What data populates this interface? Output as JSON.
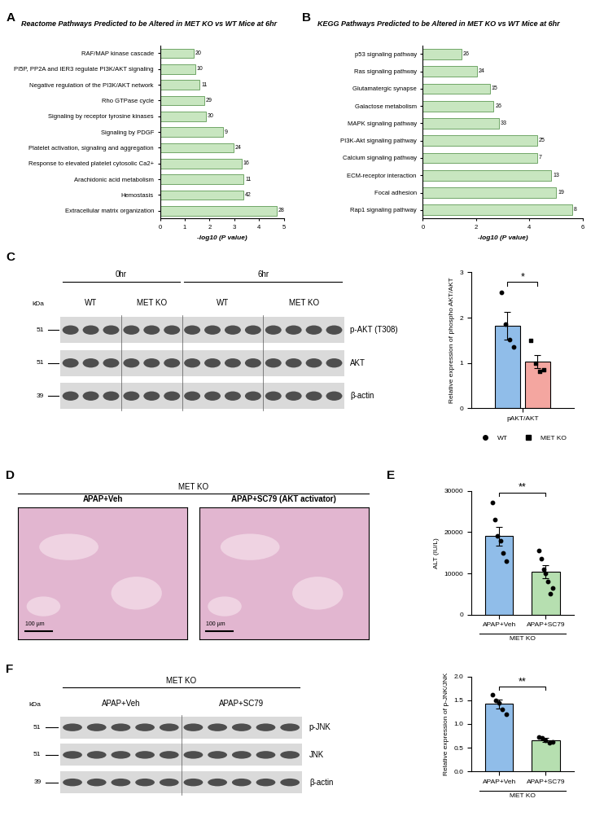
{
  "panel_labels": [
    "A",
    "B",
    "C",
    "D",
    "E",
    "F"
  ],
  "chart_data": [
    {
      "type": "bar",
      "orientation": "horizontal",
      "title": "Reactome Pathways Predicted to be Altered in MET KO vs WT Mice at 6hr",
      "x_label": "-log10 (P value)",
      "categories": [
        "RAF/MAP kinase cascade",
        "PI5P, PP2A and IER3 regulate PI3K/AKT signaling",
        "Negative regulation of the PI3K/AKT network",
        "Rho GTPase cycle",
        "Signaling by receptor tyrosine kinases",
        "Signaling by PDGF",
        "Platelet activation, signaling and aggregation",
        "Response to elevated platelet cytosolic Ca2+",
        "Arachidonic acid metabolism",
        "Hemostasis",
        "Extracellular matrix organization"
      ],
      "values": [
        1.35,
        1.42,
        1.6,
        1.78,
        1.85,
        2.55,
        2.97,
        3.3,
        3.38,
        3.38,
        4.72
      ],
      "counts": [
        20,
        10,
        11,
        29,
        30,
        9,
        24,
        16,
        11,
        42,
        28
      ],
      "color": "#c8e6c0",
      "xlim": [
        0,
        5
      ],
      "xticks": [
        0,
        1,
        2,
        3,
        4,
        5
      ]
    },
    {
      "type": "bar",
      "orientation": "horizontal",
      "title": "KEGG Pathways Predicted to be Altered in MET KO vs WT Mice at 6hr",
      "x_label": "-log10 (P value)",
      "categories": [
        "p53 signaling pathway",
        "Ras signaling pathway",
        "Glutamatergic synapse",
        "Galactose metabolism",
        "MAPK signaling pathway",
        "PI3K-Akt signaling pathway",
        "Calcium signaling pathway",
        "ECM-receptor interaction",
        "Focal adhesion",
        "Rap1 signaling pathway"
      ],
      "values": [
        1.45,
        2.02,
        2.52,
        2.65,
        2.85,
        4.28,
        4.28,
        4.82,
        5.0,
        5.6
      ],
      "counts": [
        26,
        24,
        15,
        26,
        33,
        25,
        7,
        13,
        19,
        8
      ],
      "color": "#c8e6c0",
      "xlim": [
        0,
        6
      ],
      "xticks": [
        0,
        2,
        4,
        6
      ]
    },
    {
      "type": "bar",
      "y_label": "Relative expression of phospho AKT/AKT",
      "categories": [
        "pAKT/AKT"
      ],
      "series": [
        {
          "name": "WT",
          "color": "#90bde9",
          "marker": "circle",
          "values": [
            1.82
          ],
          "errors": [
            0.3
          ],
          "points": [
            [
              2.55,
              1.85,
              1.52,
              1.35
            ]
          ]
        },
        {
          "name": "MET KO",
          "color": "#f4a6a0",
          "marker": "square",
          "values": [
            1.03
          ],
          "errors": [
            0.15
          ],
          "points": [
            [
              1.5,
              1.0,
              0.82,
              0.85
            ]
          ]
        }
      ],
      "legend": "bottom",
      "significance": "*",
      "ylim": [
        0,
        3
      ],
      "yticks": [
        0,
        1,
        2,
        3
      ]
    },
    {
      "type": "bar",
      "y_label": "ALT (IU/L)",
      "categories": [
        "APAP+Veh",
        "APAP+SC79"
      ],
      "group_label": "MET KO",
      "values": [
        19000,
        10400
      ],
      "errors": [
        2200,
        1600
      ],
      "points": [
        [
          27200,
          23000,
          19000,
          18000,
          15000,
          13000
        ],
        [
          15500,
          13500,
          11000,
          10000,
          8000,
          5000,
          6500
        ]
      ],
      "colors": [
        "#90bde9",
        "#b6dfb0"
      ],
      "marker": "circle",
      "significance": "**",
      "ylim": [
        0,
        30000
      ],
      "yticks": [
        0,
        10000,
        20000,
        30000
      ]
    },
    {
      "type": "bar",
      "y_label": "Relative expression of p-JNK/JNK",
      "categories": [
        "APAP+Veh",
        "APAP+SC79"
      ],
      "group_label": "MET KO",
      "values": [
        1.42,
        0.66
      ],
      "errors": [
        0.1,
        0.04
      ],
      "points": [
        [
          1.62,
          1.5,
          1.45,
          1.3,
          1.2
        ],
        [
          0.72,
          0.7,
          0.65,
          0.6,
          0.62
        ]
      ],
      "colors": [
        "#90bde9",
        "#b6dfb0"
      ],
      "marker": "circle",
      "significance": "**",
      "ylim": [
        0,
        2.0
      ],
      "yticks": [
        {
          "value": 0,
          "label": "0.0"
        },
        {
          "value": 0.5,
          "label": "0.5"
        },
        {
          "value": 1.0,
          "label": "1.0"
        },
        {
          "value": 1.5,
          "label": "1.5"
        },
        {
          "value": 2.0,
          "label": "2.0"
        }
      ]
    }
  ],
  "blots": [
    {
      "kDa_label": "kDa",
      "headers": [
        {
          "label": "0hr",
          "groups": [
            "WT",
            "MET KO"
          ]
        },
        {
          "label": "6hr",
          "groups": [
            "WT",
            "MET KO"
          ]
        }
      ],
      "rows": [
        {
          "protein": "p-AKT (T308)",
          "kDa": 51
        },
        {
          "protein": "AKT",
          "kDa": 51
        },
        {
          "protein": "β-actin",
          "kDa": 39
        }
      ]
    },
    {
      "kDa_label": "kDa",
      "headers": [
        {
          "label": "MET KO",
          "groups": [
            "APAP+Veh",
            "APAP+SC79"
          ]
        }
      ],
      "rows": [
        {
          "protein": "p-JNK",
          "kDa": 51
        },
        {
          "protein": "JNK",
          "kDa": 51
        },
        {
          "protein": "β-actin",
          "kDa": 39
        }
      ]
    }
  ],
  "histology": {
    "header": "MET KO",
    "images": [
      {
        "label": "APAP+Veh",
        "scale_bar": "100 µm"
      },
      {
        "label": "APAP+SC79 (AKT activator)",
        "scale_bar": "100 µm"
      }
    ]
  }
}
